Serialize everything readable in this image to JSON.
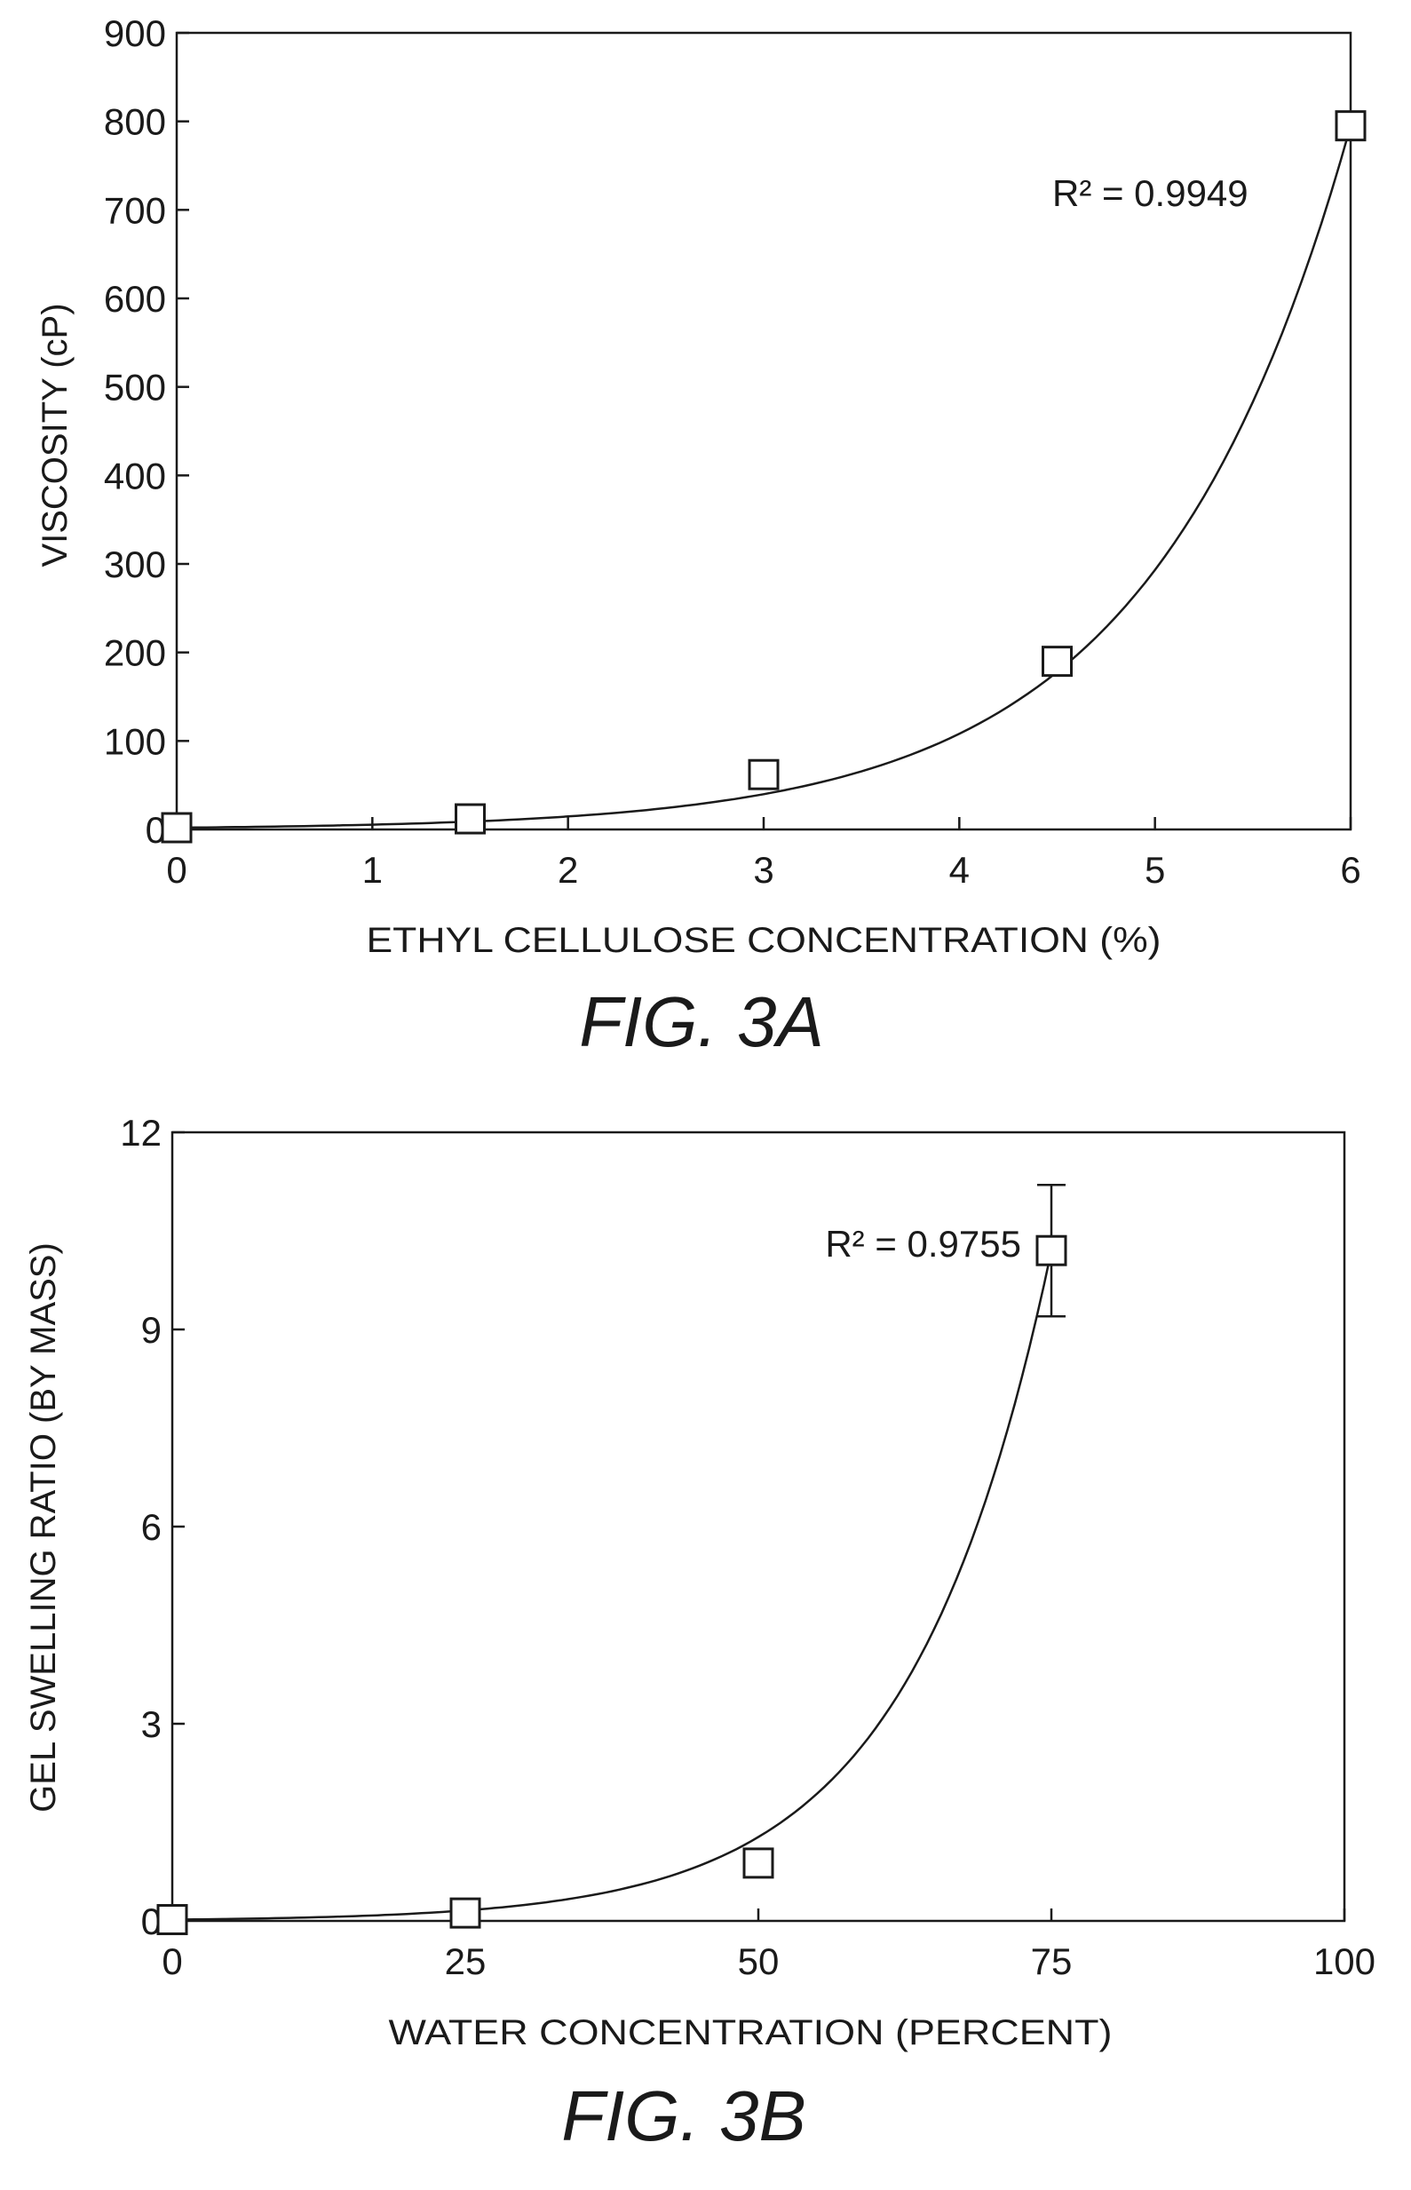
{
  "chart_data": [
    {
      "type": "scatter",
      "caption": "FIG. 3A",
      "xlabel": "ETHYL CELLULOSE CONCENTRATION (%)",
      "ylabel": "VISCOSITY (cP)",
      "xlim": [
        0,
        6
      ],
      "ylim": [
        0,
        900
      ],
      "xticks": [
        0,
        1,
        2,
        3,
        4,
        5,
        6
      ],
      "yticks": [
        0,
        100,
        200,
        300,
        400,
        500,
        600,
        700,
        800,
        900
      ],
      "grid": false,
      "x": [
        0,
        1.5,
        3,
        4.5,
        6
      ],
      "y": [
        2,
        12,
        62,
        190,
        795
      ],
      "fit": {
        "form": "exponential",
        "r2_label": "R² = 0.9949"
      }
    },
    {
      "type": "scatter",
      "caption": "FIG. 3B",
      "xlabel": "WATER CONCENTRATION (PERCENT)",
      "ylabel": "GEL SWELLING RATIO (BY MASS)",
      "xlim": [
        0,
        100
      ],
      "ylim": [
        0,
        12
      ],
      "xticks": [
        0,
        25,
        50,
        75,
        100
      ],
      "yticks": [
        0,
        3,
        6,
        9,
        12
      ],
      "grid": false,
      "x": [
        0,
        25,
        50,
        75
      ],
      "y": [
        0.02,
        0.12,
        0.88,
        10.2
      ],
      "error": [
        0,
        0,
        0,
        1.0
      ],
      "fit": {
        "form": "exponential",
        "r2_label": "R² = 0.9755"
      }
    }
  ]
}
